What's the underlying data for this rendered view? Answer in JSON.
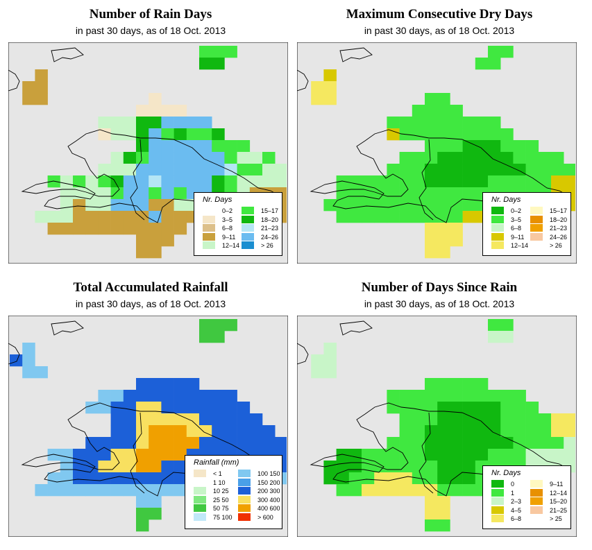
{
  "panels": [
    {
      "id": "rain-days",
      "title": "Number of Rain Days",
      "subtitle": "in past 30 days, as of  18 Oct. 2013",
      "legend_title": "Nr. Days",
      "legend": [
        {
          "label": "0–2",
          "color": "#ffffff"
        },
        {
          "label": "3–5",
          "color": "#f5e6c8"
        },
        {
          "label": "6–8",
          "color": "#ddc08a"
        },
        {
          "label": "9–11",
          "color": "#c9a03c"
        },
        {
          "label": "12–14",
          "color": "#c8f5c8"
        },
        {
          "label": "15–17",
          "color": "#40e840"
        },
        {
          "label": "18–20",
          "color": "#10b810"
        },
        {
          "label": "21–23",
          "color": "#b5e6f5"
        },
        {
          "label": "24–26",
          "color": "#6bbcf0"
        },
        {
          "label": "> 26",
          "color": "#1a8ed0"
        }
      ],
      "grid": [
        "...............nnn....",
        "...............ss.....",
        "..c...................",
        ".cc...................",
        ".cc........b..........",
        "..........bbbb........",
        ".......lllssrrrr......",
        ".......bllsrnsnns.....",
        "..........srrrrrnnn...",
        "........lsnmmmmmmnlln.",
        ".......lllmmmmmmmhnnll",
        "...nlnlnsmmhmmmmsnllll",
        "....llllnmmnmnmmsnlcccc",
        "....lcllmmmcclllnnncccc",
        "..lllccccccmcccclnlcccc",
        "...ccccccccccc.cccc....",
        "..........ccc..........",
        "..........cc..........."
      ]
    },
    {
      "id": "dry-days",
      "title": "Maximum Consecutive Dry Days",
      "subtitle": "in past 30 days, as of  18 Oct. 2013",
      "legend_title": "Nr. Days",
      "legend": [
        {
          "label": "0–2",
          "color": "#10b810"
        },
        {
          "label": "3–5",
          "color": "#40e840"
        },
        {
          "label": "6–8",
          "color": "#c8f5c8"
        },
        {
          "label": "9–11",
          "color": "#d8c800"
        },
        {
          "label": "12–14",
          "color": "#f5e860"
        },
        {
          "label": "15–17",
          "color": "#fff8c0"
        },
        {
          "label": "18–20",
          "color": "#e89000"
        },
        {
          "label": "21–23",
          "color": "#f0a000"
        },
        {
          "label": "24–26",
          "color": "#f8c8a0"
        },
        {
          "label": "> 26",
          "color": "#ffffff"
        }
      ],
      "grid": [
        "...............nn.....",
        "..............nn......",
        "..y...................",
        ".ll...................",
        ".ll.......nn..........",
        ".........nnnn.........",
        ".......nnnnnnnnn......",
        ".......ynnnnnnnnn.....",
        "..........nnnmmmnnn...",
        "........nnnmmmmmmnnnn.",
        ".......nnnmmmmmmmmnnnn",
        "...nnnnnnnmmmmmnnnnnyy",
        "...nnnnnnnnnnnnnnnnnyyy",
        "..nnnnnnnnnnnnnnnnnyyy",
        "...nnnnnnnnnnyynnnn....",
        "..........lll.........",
        "..........lll.........",
        "..........ll.........."
      ]
    },
    {
      "id": "rainfall",
      "title": "Total Accumulated Rainfall",
      "subtitle": "in past 30 days, as of  18 Oct. 2013",
      "legend_title": "Rainfall (mm)",
      "legend": [
        {
          "label": "< 1",
          "color": "#f5e6c8"
        },
        {
          "label": "1    10",
          "color": "#ffffff"
        },
        {
          "label": "10    25",
          "color": "#c8f5c8"
        },
        {
          "label": "25    50",
          "color": "#80e880"
        },
        {
          "label": "50    75",
          "color": "#40c840"
        },
        {
          "label": "75  100",
          "color": "#c0e8f8"
        },
        {
          "label": "100  150",
          "color": "#80c8f0"
        },
        {
          "label": "150  200",
          "color": "#4aa0e8"
        },
        {
          "label": "200  300",
          "color": "#1c60d8"
        },
        {
          "label": "300  400",
          "color": "#f8e060"
        },
        {
          "label": "400  600",
          "color": "#f0a000"
        },
        {
          "label": "> 600",
          "color": "#f03000"
        }
      ],
      "grid": [
        "...............nnn....",
        "...............nn.....",
        ".a....................",
        "ba....................",
        ".aa...................",
        "..........bbbbb.......",
        ".......aabbbbbbbbb....",
        "......aabbccbbbbbbb...",
        "........bbcyyyybbbbb..",
        "........bbcrrryybbbbb.",
        "......bbbbcrrrrbbbbbbbb",
        "...aabbbycrrrrbbbbbbbb",
        "....abbyycrrbbbbbbbbbbb",
        "...aabbbbbbbbbaaaaaaaa",
        "..aaaaaaaaaaaaaaaaaaa..",
        "..........aa..........",
        "..........nn..........",
        "..........n..........."
      ]
    },
    {
      "id": "since-rain",
      "title": "Number of Days Since Rain",
      "subtitle": "in past 30 days, as of  18 Oct. 2013",
      "legend_title": "Nr. Days",
      "legend": [
        {
          "label": "0",
          "color": "#10b810"
        },
        {
          "label": "1",
          "color": "#40e840"
        },
        {
          "label": "2–3",
          "color": "#c8f5c8"
        },
        {
          "label": "4–5",
          "color": "#d8c800"
        },
        {
          "label": "6–8",
          "color": "#f5e860"
        },
        {
          "label": "9–11",
          "color": "#fff8c0"
        },
        {
          "label": "12–14",
          "color": "#e89000"
        },
        {
          "label": "15–20",
          "color": "#f0a000"
        },
        {
          "label": "21–25",
          "color": "#f8c8a0"
        },
        {
          "label": "> 25",
          "color": "#ffffff"
        }
      ],
      "grid": [
        "...............nn.....",
        "...............ll.....",
        "..l...................",
        ".ll...................",
        ".ll...................",
        "..........nnnnn.......",
        ".......nnnnnnnnnnn....",
        ".......nnnnmmmmmnnn...",
        "........nnnmmmmmnnnnyy",
        "........nnmmmmmmnnnnyy",
        ".......nnnmmmmmmmnnnnl",
        "...mmnnnnnmmmmmnnnllll",
        "..mmmnnnnnnmmmnnnnlllll",
        "..mmnnyyynnmmmnnnnlll..",
        "...nnyyyyyynnnn........",
        "..........yy..........",
        "..........yy..........",
        "..........nn.........."
      ]
    }
  ]
}
